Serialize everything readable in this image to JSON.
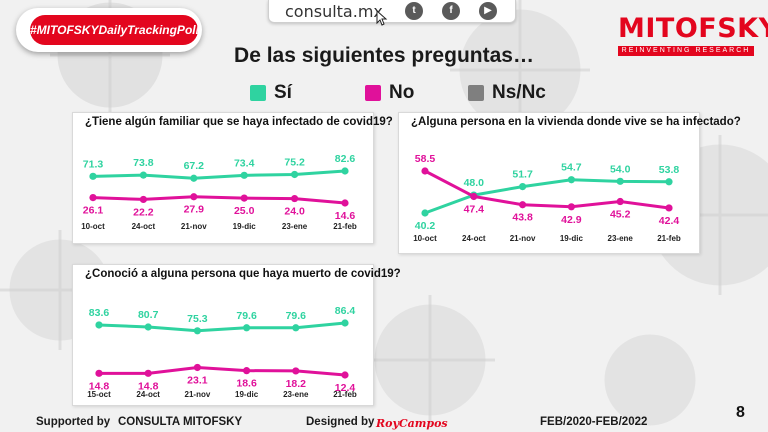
{
  "header": {
    "hashtag": "#MITOFSKYDailyTrackingPoll",
    "site_url": "consulta.mx",
    "social_icons": [
      "twitter-icon",
      "facebook-icon",
      "youtube-icon"
    ],
    "brand_name": "MITOFSKY",
    "brand_tagline": "REINVENTING RESEARCH",
    "title": "De las siguientes preguntas…"
  },
  "legend": [
    {
      "label": "Sí",
      "color": "#2fd3a0"
    },
    {
      "label": "No",
      "color": "#e0119a"
    },
    {
      "label": "Ns/Nc",
      "color": "#7f7f7f"
    }
  ],
  "colors": {
    "si": "#2fd3a0",
    "no": "#e0119a",
    "brand": "#e3061e"
  },
  "chart_data": [
    {
      "type": "line",
      "title": "¿Tiene algún familiar que se haya infectado de covid19?",
      "categories": [
        "10-oct",
        "24-oct",
        "21-nov",
        "19-dic",
        "23-ene",
        "21-feb"
      ],
      "series": [
        {
          "name": "Sí",
          "values": [
            71.3,
            73.8,
            67.2,
            73.4,
            75.2,
            82.6
          ]
        },
        {
          "name": "No",
          "values": [
            26.1,
            22.2,
            27.9,
            25.0,
            24.0,
            14.6
          ]
        }
      ],
      "labels": {
        "Sí": [
          "71.3",
          "73.8",
          "67.2",
          "73.4",
          "75.2",
          "82.6"
        ],
        "No": [
          "26.1",
          "22.2",
          "27.9",
          "25.0",
          "24.0",
          "14.6"
        ]
      }
    },
    {
      "type": "line",
      "title": "¿Alguna persona en la vivienda donde vive se ha infectado?",
      "categories": [
        "10-oct",
        "24-oct",
        "21-nov",
        "19-dic",
        "23-ene",
        "21-feb"
      ],
      "series": [
        {
          "name": "Sí",
          "values": [
            40.2,
            48.0,
            51.7,
            54.7,
            54.0,
            53.8
          ]
        },
        {
          "name": "No",
          "values": [
            58.5,
            47.4,
            43.8,
            42.9,
            45.2,
            42.4
          ]
        }
      ],
      "labels": {
        "Sí": [
          "40.2",
          "48.0",
          "51.7",
          "54.7",
          "54.0",
          "53.8"
        ],
        "No": [
          "58.5",
          "47.4",
          "43.8",
          "42.9",
          "45.2",
          "42.4"
        ]
      }
    },
    {
      "type": "line",
      "title": "¿Conoció a alguna persona que haya muerto de covid19?",
      "categories": [
        "15-oct",
        "24-oct",
        "21-nov",
        "19-dic",
        "23-ene",
        "21-feb"
      ],
      "series": [
        {
          "name": "Sí",
          "values": [
            83.6,
            80.7,
            75.3,
            79.6,
            79.6,
            86.4
          ]
        },
        {
          "name": "No",
          "values": [
            14.8,
            14.8,
            23.1,
            18.6,
            18.2,
            12.4
          ]
        }
      ],
      "labels": {
        "Sí": [
          "83.6",
          "80.7",
          "75.3",
          "79.6",
          "79.6",
          "86.4"
        ],
        "No": [
          "14.8",
          "14.8",
          "23.1",
          "18.6",
          "18.2",
          "12.4"
        ]
      }
    }
  ],
  "footer": {
    "supported_by": "Supported by",
    "supporters": "CONSULTA   MITOFSKY",
    "designed_by": "Designed by",
    "designer": "RoyCampos",
    "period": "FEB/2020-FEB/2022",
    "page_number": "8"
  }
}
